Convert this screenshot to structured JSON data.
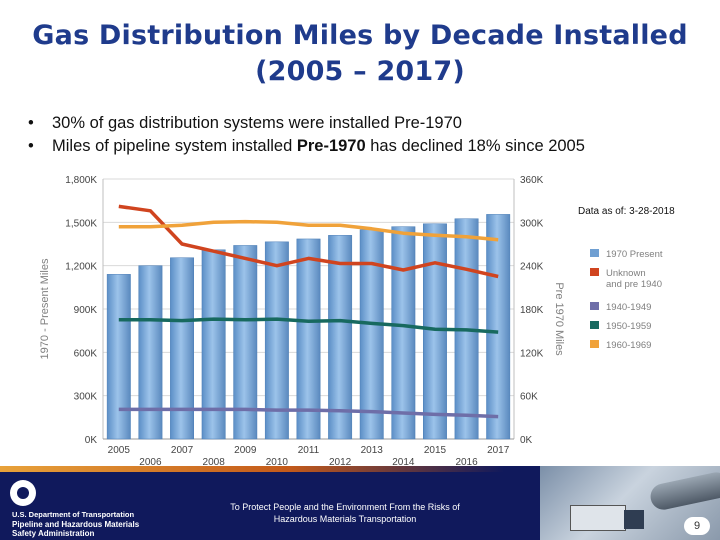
{
  "header": {
    "title_line1": "Gas Distribution Miles by Decade Installed",
    "title_line2": "(2005 – 2017)"
  },
  "bullets": {
    "b1": "30% of gas distribution systems were installed Pre-1970",
    "b2_pre": "Miles of pipeline system installed ",
    "b2_bold": "Pre-1970",
    "b2_post": " has declined 18% since 2005"
  },
  "chart_data": {
    "type": "bar",
    "note": "Data as of: 3-28-2018",
    "categories": [
      "2005",
      "2006",
      "2007",
      "2008",
      "2009",
      "2010",
      "2011",
      "2012",
      "2013",
      "2014",
      "2015",
      "2016",
      "2017"
    ],
    "x_tick_labels_top": [
      "2005",
      "2007",
      "2009",
      "2011",
      "2013",
      "2015",
      "2017"
    ],
    "x_tick_labels_bottom": [
      "2006",
      "2008",
      "2010",
      "2012",
      "2014",
      "2016"
    ],
    "ylabel": "1970 - Present Miles",
    "y2label": "Pre 1970 Miles",
    "ylim": [
      0,
      1800000
    ],
    "y2lim": [
      0,
      360000
    ],
    "y_ticks": [
      "0K",
      "300K",
      "600K",
      "900K",
      "1,200K",
      "1,500K",
      "1,800K"
    ],
    "y2_ticks": [
      "0K",
      "60K",
      "120K",
      "180K",
      "240K",
      "300K",
      "360K"
    ],
    "grid": true,
    "legend_position": "right",
    "series": [
      {
        "name": "1970 Present",
        "kind": "bar",
        "axis": "left",
        "color": "#6f9fd2",
        "values": [
          1140000,
          1200000,
          1255000,
          1310000,
          1340000,
          1365000,
          1385000,
          1410000,
          1450000,
          1470000,
          1490000,
          1525000,
          1555000
        ]
      },
      {
        "name": "Unknown and pre 1940",
        "kind": "line",
        "axis": "right",
        "color": "#d0441f",
        "values": [
          322000,
          316000,
          270000,
          260000,
          250000,
          240000,
          250000,
          243000,
          243000,
          234000,
          244000,
          235000,
          225000
        ]
      },
      {
        "name": "1940-1949",
        "kind": "line",
        "axis": "right",
        "color": "#6e6ea8",
        "values": [
          41000,
          41000,
          41000,
          41000,
          41000,
          40000,
          40000,
          39000,
          38000,
          36000,
          34000,
          33000,
          31000
        ]
      },
      {
        "name": "1950-1959",
        "kind": "line",
        "axis": "right",
        "color": "#17695f",
        "values": [
          165000,
          165000,
          164000,
          166000,
          165000,
          166000,
          163000,
          164000,
          160000,
          157000,
          152000,
          151000,
          148000
        ]
      },
      {
        "name": "1960-1969",
        "kind": "line",
        "axis": "right",
        "color": "#f0a23a",
        "values": [
          294000,
          294000,
          296000,
          300000,
          301000,
          300000,
          296000,
          296000,
          291000,
          285000,
          282000,
          280000,
          276000
        ]
      }
    ]
  },
  "footer": {
    "dept": "U.S. Department of Transportation",
    "agency_line1": "Pipeline and Hazardous Materials",
    "agency_line2": "Safety Administration",
    "mission_line1": "To Protect People and the Environment From the Risks of",
    "mission_line2": "Hazardous Materials Transportation",
    "page_number": "9"
  }
}
